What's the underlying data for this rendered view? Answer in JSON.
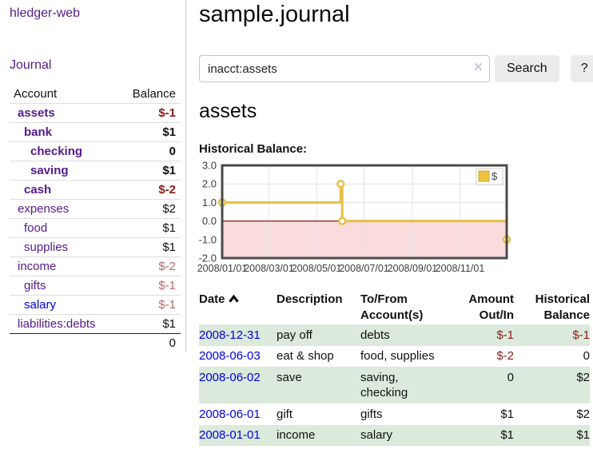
{
  "colors": {
    "link_visited": "#551a8b",
    "link_new": "#0000e0",
    "negative_strong": "#8b1a1a",
    "negative_soft": "#b46a6a",
    "row_green": "#dbeadb",
    "chart_line": "#e8bf45",
    "chart_swatch": "#edc240",
    "chart_negative_fill": "#fadcdc",
    "chart_zero_line": "#8c1717"
  },
  "sidebar": {
    "app_title": "hledger-web",
    "journal_link": "Journal",
    "accounts_header": {
      "account": "Account",
      "balance": "Balance"
    },
    "accounts": [
      {
        "name": "assets",
        "depth": 1,
        "bold": true,
        "balance": "$-1",
        "balance_color": "negative"
      },
      {
        "name": "bank",
        "depth": 2,
        "bold": true,
        "balance": "$1",
        "balance_color": "normal"
      },
      {
        "name": "checking",
        "depth": 3,
        "bold": true,
        "balance": "0",
        "balance_color": "normal"
      },
      {
        "name": "saving",
        "depth": 3,
        "bold": true,
        "balance": "$1",
        "balance_color": "normal"
      },
      {
        "name": "cash",
        "depth": 2,
        "bold": true,
        "balance": "$-2",
        "balance_color": "negative"
      },
      {
        "name": "expenses",
        "depth": 1,
        "bold": false,
        "balance": "$2",
        "balance_color": "normal"
      },
      {
        "name": "food",
        "depth": 2,
        "bold": false,
        "balance": "$1",
        "balance_color": "normal"
      },
      {
        "name": "supplies",
        "depth": 2,
        "bold": false,
        "balance": "$1",
        "balance_color": "normal"
      },
      {
        "name": "income",
        "depth": 1,
        "bold": false,
        "balance": "$-2",
        "balance_color": "negative-soft"
      },
      {
        "name": "gifts",
        "depth": 2,
        "bold": false,
        "balance": "$-1",
        "balance_color": "negative-soft"
      },
      {
        "name": "salary",
        "depth": 2,
        "bold": false,
        "balance": "$-1",
        "balance_color": "negative-soft",
        "link_style": "unvisited"
      },
      {
        "name": "liabilities:debts",
        "depth": 1,
        "bold": false,
        "balance": "$1",
        "balance_color": "normal"
      }
    ],
    "total": "0"
  },
  "main": {
    "title": "sample.journal",
    "search": {
      "value": "inacct:assets",
      "clear_icon": "×",
      "button": "Search",
      "help": "?"
    },
    "account_heading": "assets",
    "chart_label": "Historical Balance:"
  },
  "chart_data": {
    "type": "line",
    "step": true,
    "title": "Historical Balance",
    "series": [
      {
        "name": "$",
        "color": "#edc240",
        "points": [
          [
            "2008-01-01",
            1
          ],
          [
            "2008-06-01",
            2
          ],
          [
            "2008-06-03",
            0
          ],
          [
            "2008-12-31",
            -1
          ]
        ]
      }
    ],
    "x_range": [
      "2008-01-01",
      "2008-12-31"
    ],
    "ylim": [
      -2,
      3
    ],
    "y_ticks": [
      -2,
      -1,
      0,
      1,
      2,
      3
    ],
    "y_tick_labels": [
      "-2.0",
      "-1.0",
      "0.0",
      "1.0",
      "2.0",
      "3.0"
    ],
    "x_ticks": [
      "2008-01-01",
      "2008-03-01",
      "2008-05-01",
      "2008-07-01",
      "2008-09-01",
      "2008-11-01"
    ],
    "x_tick_labels": [
      "2008/01/01",
      "2008/03/01",
      "2008/05/01",
      "2008/07/01",
      "2008/09/01",
      "2008/11/01"
    ],
    "grid": true,
    "legend": {
      "label": "$",
      "position": "top-right"
    }
  },
  "register": {
    "headers": {
      "date": "Date",
      "description": "Description",
      "tofrom": "To/From Account(s)",
      "amount": "Amount Out/In",
      "balance": "Historical Balance"
    },
    "rows": [
      {
        "date": "2008-12-31",
        "description": "pay off",
        "accounts": "debts",
        "amount": "$-1",
        "amount_neg": true,
        "balance": "$-1",
        "balance_neg": true,
        "zebra": true
      },
      {
        "date": "2008-06-03",
        "description": "eat & shop",
        "accounts": "food, supplies",
        "amount": "$-2",
        "amount_neg": true,
        "balance": "0",
        "balance_neg": false,
        "zebra": false
      },
      {
        "date": "2008-06-02",
        "description": "save",
        "accounts": "saving, checking",
        "amount": "0",
        "amount_neg": false,
        "balance": "$2",
        "balance_neg": false,
        "zebra": true
      },
      {
        "date": "2008-06-01",
        "description": "gift",
        "accounts": "gifts",
        "amount": "$1",
        "amount_neg": false,
        "balance": "$2",
        "balance_neg": false,
        "zebra": false
      },
      {
        "date": "2008-01-01",
        "description": "income",
        "accounts": "salary",
        "amount": "$1",
        "amount_neg": false,
        "balance": "$1",
        "balance_neg": false,
        "zebra": true
      }
    ]
  }
}
